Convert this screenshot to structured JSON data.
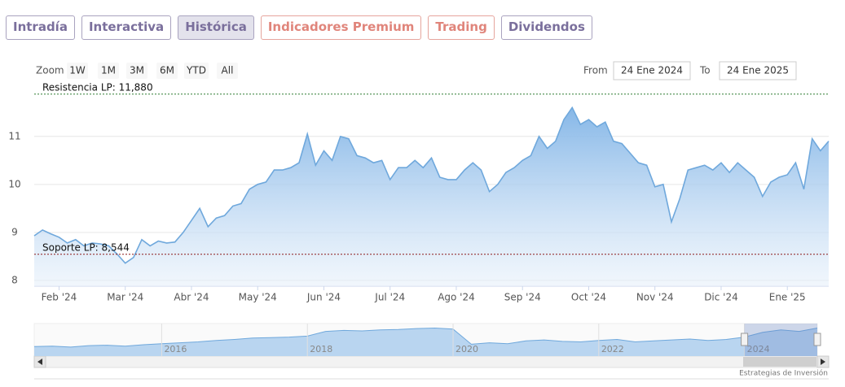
{
  "tabs": [
    "Intradía",
    "Interactiva",
    "Histórica",
    "Indicadores Premium",
    "Trading",
    "Dividendos"
  ],
  "zoom": {
    "label": "Zoom",
    "buttons": [
      "1W",
      "1M",
      "3M",
      "6M",
      "YTD",
      "All"
    ]
  },
  "range": {
    "from_label": "From",
    "from": "24 Ene 2024",
    "to_label": "To",
    "to": "24 Ene 2025"
  },
  "credit": "Estrategias de Inversión",
  "chart_data": [
    {
      "type": "area",
      "color": "#6fa8dc",
      "categories": [
        null,
        null,
        null,
        "Feb '24",
        null,
        null,
        null,
        null,
        null,
        null,
        null,
        "Mar '24",
        null,
        null,
        null,
        null,
        null,
        null,
        null,
        "Abr '24",
        null,
        null,
        null,
        null,
        null,
        null,
        null,
        "May '24",
        null,
        null,
        null,
        null,
        null,
        null,
        null,
        "Jun '24",
        null,
        null,
        null,
        null,
        null,
        null,
        null,
        "Jul '24",
        null,
        null,
        null,
        null,
        null,
        null,
        null,
        "Ago '24",
        null,
        null,
        null,
        null,
        null,
        null,
        null,
        "Sep '24",
        null,
        null,
        null,
        null,
        null,
        null,
        null,
        "Oct '24",
        null,
        null,
        null,
        null,
        null,
        null,
        null,
        "Nov '24",
        null,
        null,
        null,
        null,
        null,
        null,
        null,
        "Dic '24",
        null,
        null,
        null,
        null,
        null,
        null,
        null,
        "Ene '25",
        null,
        null,
        null,
        null,
        null
      ],
      "values": [
        8.93,
        9.05,
        8.97,
        8.9,
        8.78,
        8.85,
        8.72,
        8.78,
        8.76,
        8.72,
        8.55,
        8.36,
        8.48,
        8.85,
        8.72,
        8.82,
        8.78,
        8.8,
        9.0,
        9.25,
        9.5,
        9.12,
        9.3,
        9.35,
        9.55,
        9.6,
        9.9,
        10.0,
        10.05,
        10.3,
        10.3,
        10.35,
        10.45,
        11.05,
        10.4,
        10.7,
        10.5,
        11.0,
        10.95,
        10.6,
        10.55,
        10.45,
        10.5,
        10.1,
        10.35,
        10.35,
        10.5,
        10.35,
        10.55,
        10.15,
        10.1,
        10.1,
        10.3,
        10.45,
        10.3,
        9.85,
        10.0,
        10.25,
        10.35,
        10.5,
        10.6,
        11.0,
        10.75,
        10.9,
        11.35,
        11.6,
        11.25,
        11.35,
        11.2,
        11.3,
        10.9,
        10.85,
        10.65,
        10.45,
        10.4,
        9.95,
        10.0,
        9.22,
        9.7,
        10.3,
        10.35,
        10.4,
        10.3,
        10.45,
        10.25,
        10.45,
        10.3,
        10.15,
        9.75,
        10.05,
        10.15,
        10.2,
        10.45,
        9.9,
        10.95,
        10.7,
        10.9
      ],
      "ylim": [
        7.88,
        12.08
      ],
      "yticks": [
        8,
        9,
        10,
        11
      ],
      "grid": true,
      "annotations": [
        {
          "value": 11.88,
          "label": "Resistencia LP: 11,880",
          "color": "#2e7d32"
        },
        {
          "value": 8.544,
          "label": "Soporte LP: 8,544",
          "color": "#8b1a1a"
        }
      ]
    },
    {
      "type": "area",
      "color": "#6fa8dc",
      "categories": [
        null,
        null,
        null,
        null,
        null,
        null,
        null,
        "2016",
        null,
        null,
        null,
        null,
        null,
        null,
        null,
        "2018",
        null,
        null,
        null,
        null,
        null,
        null,
        null,
        "2020",
        null,
        null,
        null,
        null,
        null,
        null,
        null,
        "2022",
        null,
        null,
        null,
        null,
        null,
        null,
        null,
        "2024",
        null,
        null,
        null,
        null
      ],
      "values": [
        7.0,
        7.1,
        6.9,
        7.2,
        7.3,
        7.1,
        7.4,
        7.6,
        7.8,
        8.0,
        8.3,
        8.5,
        8.8,
        8.9,
        9.0,
        9.2,
        10.2,
        10.4,
        10.3,
        10.5,
        10.6,
        10.8,
        10.9,
        10.7,
        7.5,
        7.8,
        7.6,
        8.2,
        8.4,
        8.1,
        8.0,
        8.3,
        8.5,
        8.0,
        8.2,
        8.4,
        8.6,
        8.3,
        8.5,
        9.0,
        10.0,
        10.5,
        10.2,
        10.9
      ],
      "ylim": [
        5,
        11.5
      ]
    }
  ]
}
